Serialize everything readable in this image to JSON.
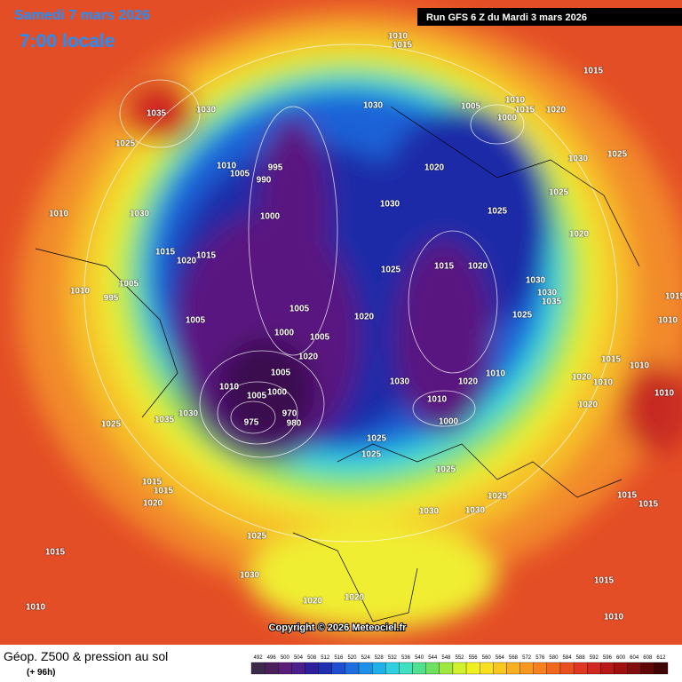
{
  "header": {
    "date": "Samedi 7 mars 2026",
    "time": "7:00 locale",
    "run": "Run GFS 6 Z du Mardi 3 mars 2026"
  },
  "pressure_labels": [
    1035,
    1030,
    1025,
    1010,
    1005,
    995,
    990,
    1000,
    1010,
    1030,
    1015,
    1020,
    1015,
    1010,
    1005,
    995,
    1005,
    1005,
    1000,
    1005,
    1020,
    1005,
    1010,
    1005,
    1000,
    975,
    980,
    970,
    1035,
    1030,
    1025,
    1015,
    1015,
    1020,
    1015,
    1010,
    1025,
    1030,
    1020,
    1020,
    1030,
    1030,
    1025,
    1025,
    1025,
    1025,
    1000,
    1010,
    1030,
    1020,
    1025,
    1015,
    1020,
    1010,
    1020,
    1025,
    1030,
    1035,
    1030,
    1020,
    1025,
    1030,
    1025,
    1020,
    1015,
    1010,
    1005,
    1000,
    1030,
    1020,
    1030,
    1025,
    1010,
    1015,
    1015,
    1015,
    1010,
    1020,
    1010,
    1020,
    1010,
    1010,
    1015,
    1015,
    1015,
    1010,
    1015
  ],
  "copyright": "Copyright © 2026 Meteociel.fr",
  "legend": {
    "title": "Géop. Z500 & pression au sol",
    "subtitle": "(+ 96h)",
    "scale": [
      492,
      496,
      500,
      504,
      508,
      512,
      516,
      520,
      524,
      528,
      532,
      536,
      540,
      544,
      548,
      552,
      556,
      560,
      564,
      568,
      572,
      576,
      580,
      584,
      588,
      592,
      596,
      600,
      604,
      608,
      612
    ],
    "colors": [
      "#3b2a4a",
      "#4a1f5c",
      "#5a1e78",
      "#4b1e8c",
      "#2e1f9a",
      "#1f2fb0",
      "#1f4fd0",
      "#1e6ee0",
      "#1e90e8",
      "#20b0e8",
      "#30d0e0",
      "#40e0c0",
      "#50e090",
      "#70e060",
      "#a0e840",
      "#d0f030",
      "#f0f020",
      "#f8e020",
      "#f8c820",
      "#f8b020",
      "#f89820",
      "#f88020",
      "#f06820",
      "#e85020",
      "#e03820",
      "#d02820",
      "#b81818",
      "#a01010",
      "#801010",
      "#600808",
      "#400404"
    ]
  }
}
